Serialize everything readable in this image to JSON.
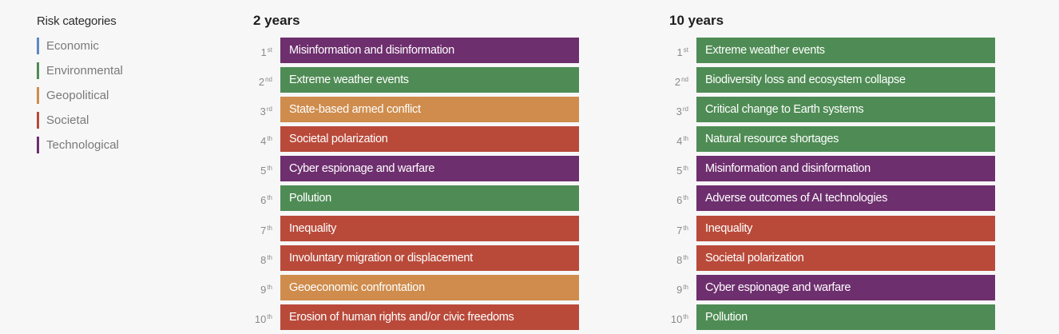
{
  "colors": {
    "Economic": "#5b87c5",
    "Environmental": "#4f8c55",
    "Geopolitical": "#cf8c4c",
    "Societal": "#b94a3a",
    "Technological": "#6e2f6e"
  },
  "chart_data": {
    "type": "table",
    "legend": {
      "title": "Risk categories",
      "items": [
        "Economic",
        "Environmental",
        "Geopolitical",
        "Societal",
        "Technological"
      ]
    },
    "columns": [
      {
        "title": "2 years",
        "rows": [
          {
            "rank": "1",
            "suffix": "st",
            "label": "Misinformation and disinformation",
            "category": "Technological"
          },
          {
            "rank": "2",
            "suffix": "nd",
            "label": "Extreme weather events",
            "category": "Environmental"
          },
          {
            "rank": "3",
            "suffix": "rd",
            "label": "State-based armed conflict",
            "category": "Geopolitical"
          },
          {
            "rank": "4",
            "suffix": "th",
            "label": "Societal polarization",
            "category": "Societal"
          },
          {
            "rank": "5",
            "suffix": "th",
            "label": "Cyber espionage and warfare",
            "category": "Technological"
          },
          {
            "rank": "6",
            "suffix": "th",
            "label": "Pollution",
            "category": "Environmental"
          },
          {
            "rank": "7",
            "suffix": "th",
            "label": "Inequality",
            "category": "Societal"
          },
          {
            "rank": "8",
            "suffix": "th",
            "label": "Involuntary migration or displacement",
            "category": "Societal"
          },
          {
            "rank": "9",
            "suffix": "th",
            "label": "Geoeconomic confrontation",
            "category": "Geopolitical"
          },
          {
            "rank": "10",
            "suffix": "th",
            "label": "Erosion of human rights and/or civic freedoms",
            "category": "Societal"
          }
        ]
      },
      {
        "title": "10 years",
        "rows": [
          {
            "rank": "1",
            "suffix": "st",
            "label": "Extreme weather events",
            "category": "Environmental"
          },
          {
            "rank": "2",
            "suffix": "nd",
            "label": "Biodiversity loss and ecosystem collapse",
            "category": "Environmental"
          },
          {
            "rank": "3",
            "suffix": "rd",
            "label": "Critical change to Earth systems",
            "category": "Environmental"
          },
          {
            "rank": "4",
            "suffix": "th",
            "label": "Natural resource shortages",
            "category": "Environmental"
          },
          {
            "rank": "5",
            "suffix": "th",
            "label": "Misinformation and disinformation",
            "category": "Technological"
          },
          {
            "rank": "6",
            "suffix": "th",
            "label": "Adverse outcomes of AI technologies",
            "category": "Technological"
          },
          {
            "rank": "7",
            "suffix": "th",
            "label": "Inequality",
            "category": "Societal"
          },
          {
            "rank": "8",
            "suffix": "th",
            "label": "Societal polarization",
            "category": "Societal"
          },
          {
            "rank": "9",
            "suffix": "th",
            "label": "Cyber espionage and warfare",
            "category": "Technological"
          },
          {
            "rank": "10",
            "suffix": "th",
            "label": "Pollution",
            "category": "Environmental"
          }
        ]
      }
    ]
  }
}
